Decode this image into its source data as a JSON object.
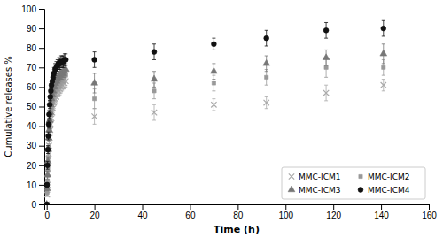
{
  "chart_data": {
    "type": "scatter",
    "xlabel": "Time (h)",
    "ylabel": "Cumulative releases %",
    "xlim": [
      -1,
      160
    ],
    "ylim": [
      0,
      100
    ],
    "xticks": [
      0,
      20,
      40,
      60,
      80,
      100,
      120,
      140,
      160
    ],
    "yticks": [
      0,
      10,
      20,
      30,
      40,
      50,
      60,
      70,
      80,
      90,
      100
    ],
    "grid": false,
    "legend": "lower right",
    "series": [
      {
        "name": "MMC-ICM1",
        "color": "#aaaaaa",
        "marker": "x",
        "x": [
          0.0,
          0.17,
          0.33,
          0.5,
          0.67,
          0.83,
          1.0,
          1.25,
          1.5,
          1.75,
          2.0,
          2.33,
          2.67,
          3.0,
          3.5,
          4.0,
          4.5,
          5.0,
          5.5,
          6.0,
          6.5,
          7.0,
          7.5,
          8.0,
          20,
          45,
          70,
          92,
          117,
          141
        ],
        "values": [
          0,
          5,
          10,
          16,
          21,
          26,
          30,
          34,
          38,
          41,
          44,
          47,
          49,
          52,
          54,
          55,
          57,
          58,
          59,
          60,
          61,
          62,
          62,
          63,
          45,
          47,
          51,
          52,
          57,
          61
        ],
        "errors": [
          0,
          1,
          2,
          2,
          2,
          2,
          2,
          2,
          2,
          2,
          2,
          2,
          2,
          3,
          3,
          3,
          3,
          3,
          3,
          3,
          3,
          3,
          3,
          3,
          4,
          4,
          3,
          3,
          4,
          3
        ]
      },
      {
        "name": "MMC-ICM2",
        "color": "#999999",
        "marker": "square",
        "x": [
          0.0,
          0.17,
          0.33,
          0.5,
          0.67,
          0.83,
          1.0,
          1.25,
          1.5,
          1.75,
          2.0,
          2.33,
          2.67,
          3.0,
          3.5,
          4.0,
          4.5,
          5.0,
          5.5,
          6.0,
          6.5,
          7.0,
          7.5,
          8.0,
          20,
          45,
          70,
          92,
          117,
          141
        ],
        "values": [
          0,
          6,
          12,
          18,
          24,
          29,
          34,
          38,
          42,
          46,
          49,
          52,
          54,
          56,
          58,
          59,
          60,
          61,
          62,
          63,
          64,
          65,
          65,
          66,
          54,
          58,
          62,
          65,
          70,
          70
        ],
        "errors": [
          0,
          1,
          2,
          2,
          2,
          2,
          2,
          2,
          2,
          2,
          2,
          2,
          2,
          3,
          3,
          3,
          3,
          3,
          3,
          3,
          3,
          3,
          3,
          3,
          5,
          4,
          4,
          4,
          5,
          4
        ]
      },
      {
        "name": "MMC-ICM3",
        "color": "#777777",
        "marker": "triangle",
        "x": [
          0.0,
          0.17,
          0.33,
          0.5,
          0.67,
          0.83,
          1.0,
          1.25,
          1.5,
          1.75,
          2.0,
          2.33,
          2.67,
          3.0,
          3.5,
          4.0,
          4.5,
          5.0,
          5.5,
          6.0,
          6.5,
          7.0,
          7.5,
          8.0,
          20,
          45,
          70,
          92,
          117,
          141
        ],
        "values": [
          0,
          8,
          15,
          22,
          28,
          34,
          38,
          43,
          47,
          51,
          54,
          56,
          58,
          60,
          62,
          63,
          64,
          65,
          66,
          67,
          67,
          68,
          68,
          69,
          62,
          64,
          68,
          72,
          75,
          77
        ],
        "errors": [
          0,
          1,
          2,
          2,
          2,
          2,
          2,
          2,
          2,
          2,
          2,
          2,
          2,
          3,
          3,
          3,
          3,
          3,
          3,
          3,
          3,
          3,
          3,
          3,
          5,
          4,
          4,
          4,
          4,
          5
        ]
      },
      {
        "name": "MMC-ICM4",
        "color": "#111111",
        "marker": "circle",
        "x": [
          0.0,
          0.17,
          0.33,
          0.5,
          0.67,
          0.83,
          1.0,
          1.25,
          1.5,
          1.75,
          2.0,
          2.33,
          2.67,
          3.0,
          3.5,
          4.0,
          4.5,
          5.0,
          5.5,
          6.0,
          6.5,
          7.0,
          7.5,
          8.0,
          20,
          45,
          70,
          92,
          117,
          141
        ],
        "values": [
          0,
          10,
          20,
          28,
          35,
          41,
          46,
          51,
          55,
          58,
          61,
          63,
          65,
          67,
          69,
          70,
          71,
          72,
          72,
          73,
          73,
          73,
          74,
          74,
          74,
          78,
          82,
          85,
          89,
          90
        ],
        "errors": [
          0,
          1,
          2,
          2,
          2,
          2,
          2,
          2,
          2,
          2,
          2,
          2,
          2,
          3,
          3,
          3,
          3,
          3,
          3,
          3,
          3,
          3,
          3,
          3,
          4,
          4,
          3,
          4,
          4,
          4
        ]
      }
    ]
  }
}
